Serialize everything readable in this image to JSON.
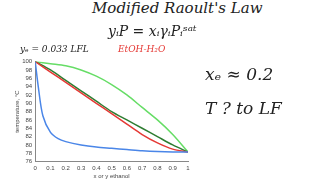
{
  "chart_data": {
    "type": "line",
    "title": "Modified Raoult's Law",
    "annotations": [
      "yᵢP = xᵢγᵢPᵢˢᵃᵗ",
      "yₑ = 0.033 LFL",
      "EtOH-H₂O",
      "xₑ ≈ 0.2",
      "T ? to LF"
    ],
    "x_label": "x or y ethanol",
    "y_label": "temperature, °C",
    "xlim": [
      0,
      1
    ],
    "xticks": [
      0,
      0.1,
      0.2,
      0.3,
      0.4,
      0.5,
      0.6,
      0.7,
      0.8,
      0.9,
      1
    ],
    "ylim": [
      76,
      100
    ],
    "yticks": [
      76,
      78,
      80,
      82,
      84,
      86,
      88,
      90,
      92,
      94,
      96,
      98,
      100
    ],
    "grid": false,
    "series": [
      {
        "color": "#4a86e8",
        "line_style": "solid",
        "marker": "none",
        "x": [
          0,
          0.02,
          0.05,
          0.1,
          0.15,
          0.2,
          0.3,
          0.4,
          0.5,
          0.6,
          0.7,
          0.8,
          0.9,
          1
        ],
        "values": [
          100,
          94,
          87,
          83,
          81.5,
          80.8,
          80,
          79.5,
          79.2,
          78.9,
          78.6,
          78.4,
          78.3,
          78.3
        ]
      },
      {
        "color": "#e53935",
        "line_style": "solid",
        "marker": "none",
        "x": [
          0,
          0.1,
          0.2,
          0.3,
          0.4,
          0.5,
          0.6,
          0.7,
          0.8,
          0.9,
          1
        ],
        "values": [
          100,
          97.5,
          95,
          92.5,
          90,
          87.5,
          85,
          82.5,
          80.5,
          79,
          78.3
        ]
      },
      {
        "color": "#2e7d32",
        "line_style": "solid",
        "marker": "none",
        "x": [
          0,
          0.1,
          0.2,
          0.3,
          0.4,
          0.5,
          0.6,
          0.7,
          0.8,
          0.9,
          1
        ],
        "values": [
          100,
          98,
          95.5,
          93,
          90.5,
          88,
          86,
          84,
          82,
          80,
          78.3
        ]
      },
      {
        "color": "#66dd66",
        "line_style": "solid",
        "marker": "none",
        "x": [
          0,
          0.1,
          0.2,
          0.3,
          0.4,
          0.5,
          0.6,
          0.7,
          0.8,
          0.9,
          1
        ],
        "values": [
          100,
          99.5,
          99,
          98,
          96.5,
          94.5,
          92,
          89,
          86,
          82.5,
          78.3
        ]
      }
    ]
  }
}
